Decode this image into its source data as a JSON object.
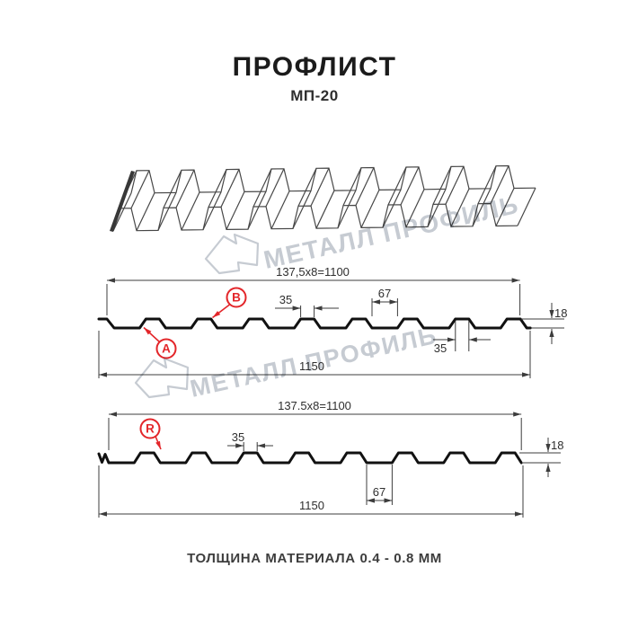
{
  "header": {
    "title": "ПРОФЛИСТ",
    "subtitle": "МП-20"
  },
  "watermark": {
    "text": "МЕТАЛЛ ПРОФИЛЬ"
  },
  "profile_top": {
    "label_a": "A",
    "label_b": "B",
    "dim_module": "137,5x8=1100",
    "dim_crest_width": "35",
    "dim_valley_width": "67",
    "dim_height": "18",
    "dim_crest_width_bottom": "35",
    "dim_total_width": "1150"
  },
  "profile_bottom": {
    "label_r": "R",
    "dim_module": "137.5x8=1100",
    "dim_crest_width": "35",
    "dim_valley_width": "67",
    "dim_height": "18",
    "dim_total_width": "1150"
  },
  "footer": {
    "note": "ТОЛЩИНА МАТЕРИАЛА 0.4 - 0.8 ММ"
  },
  "colors": {
    "accent_red": "#e3262a",
    "line_dark": "#111111",
    "dim_line": "#3c3c3c",
    "watermark": "#c6cbd2"
  }
}
